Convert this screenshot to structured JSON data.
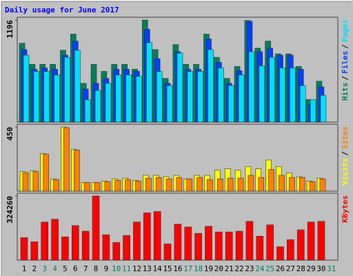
{
  "chart_data": [
    {
      "type": "bar",
      "title": "Daily usage for June 2017",
      "legend_separator": "/",
      "ylim": [
        0,
        1196
      ],
      "yticks": [
        1196
      ],
      "series": [
        {
          "name": "Hits",
          "color": "#00805c",
          "values": [
            924,
            677,
            677,
            677,
            842,
            1031,
            454,
            677,
            594,
            677,
            677,
            619,
            1196,
            850,
            512,
            908,
            677,
            677,
            1031,
            759,
            512,
            652,
            1190,
            866,
            949,
            800,
            800,
            652,
            264,
            479,
            null
          ]
        },
        {
          "name": "Files",
          "color": "#0040ff",
          "values": [
            850,
            619,
            635,
            619,
            784,
            949,
            388,
            454,
            512,
            619,
            619,
            594,
            1089,
            743,
            454,
            825,
            619,
            619,
            974,
            701,
            454,
            602,
            1180,
            825,
            866,
            784,
            784,
            619,
            206,
            413,
            null
          ]
        },
        {
          "name": "Pages",
          "color": "#00e0ff",
          "values": [
            784,
            594,
            594,
            553,
            759,
            842,
            264,
            371,
            454,
            553,
            553,
            536,
            932,
            594,
            429,
            809,
            594,
            594,
            850,
            635,
            429,
            553,
            825,
            660,
            759,
            635,
            635,
            429,
            264,
            314,
            null
          ]
        }
      ]
    },
    {
      "type": "bar",
      "legend_separator": "/",
      "ylim": [
        0,
        450
      ],
      "yticks": [
        450
      ],
      "series": [
        {
          "name": "Visits",
          "color": "#ffff00",
          "values": [
            137,
            142,
            263,
            86,
            450,
            293,
            61,
            61,
            71,
            86,
            91,
            76,
            111,
            111,
            101,
            111,
            86,
            111,
            111,
            147,
            157,
            147,
            172,
            157,
            218,
            172,
            127,
            101,
            71,
            91,
            null
          ]
        },
        {
          "name": "Sites",
          "color": "#ff8000",
          "values": [
            130,
            137,
            258,
            81,
            445,
            288,
            61,
            61,
            66,
            76,
            81,
            71,
            91,
            96,
            86,
            96,
            86,
            96,
            81,
            86,
            91,
            91,
            111,
            96,
            152,
            111,
            96,
            96,
            66,
            86,
            null
          ]
        }
      ]
    },
    {
      "type": "bar",
      "ylim": [
        0,
        324260
      ],
      "yticks": [
        324260
      ],
      "categories": [
        "1",
        "2",
        "3",
        "4",
        "5",
        "6",
        "7",
        "8",
        "9",
        "10",
        "11",
        "12",
        "13",
        "14",
        "15",
        "16",
        "17",
        "18",
        "19",
        "20",
        "21",
        "22",
        "23",
        "24",
        "25",
        "26",
        "27",
        "28",
        "29",
        "30",
        "31"
      ],
      "category_colors": [
        "#000000",
        "#000000",
        "#00805c",
        "#00805c",
        "#000000",
        "#000000",
        "#000000",
        "#000000",
        "#000000",
        "#00805c",
        "#00805c",
        "#000000",
        "#000000",
        "#000000",
        "#000000",
        "#000000",
        "#00805c",
        "#00805c",
        "#000000",
        "#000000",
        "#000000",
        "#000000",
        "#000000",
        "#00805c",
        "#00805c",
        "#000000",
        "#000000",
        "#000000",
        "#000000",
        "#000000",
        "#00805c"
      ],
      "series": [
        {
          "name": "KBytes",
          "color": "#ff0000",
          "values": [
            114016,
            92638,
            192402,
            206654,
            117579,
            174587,
            146083,
            324260,
            128268,
            89075,
            124705,
            192402,
            238721,
            245847,
            81949,
            181713,
            167461,
            135394,
            171024,
            142520,
            142520,
            146083,
            195965,
            121142,
            178150,
            67697,
            103327,
            153209,
            192402,
            195965,
            null
          ]
        }
      ]
    }
  ]
}
